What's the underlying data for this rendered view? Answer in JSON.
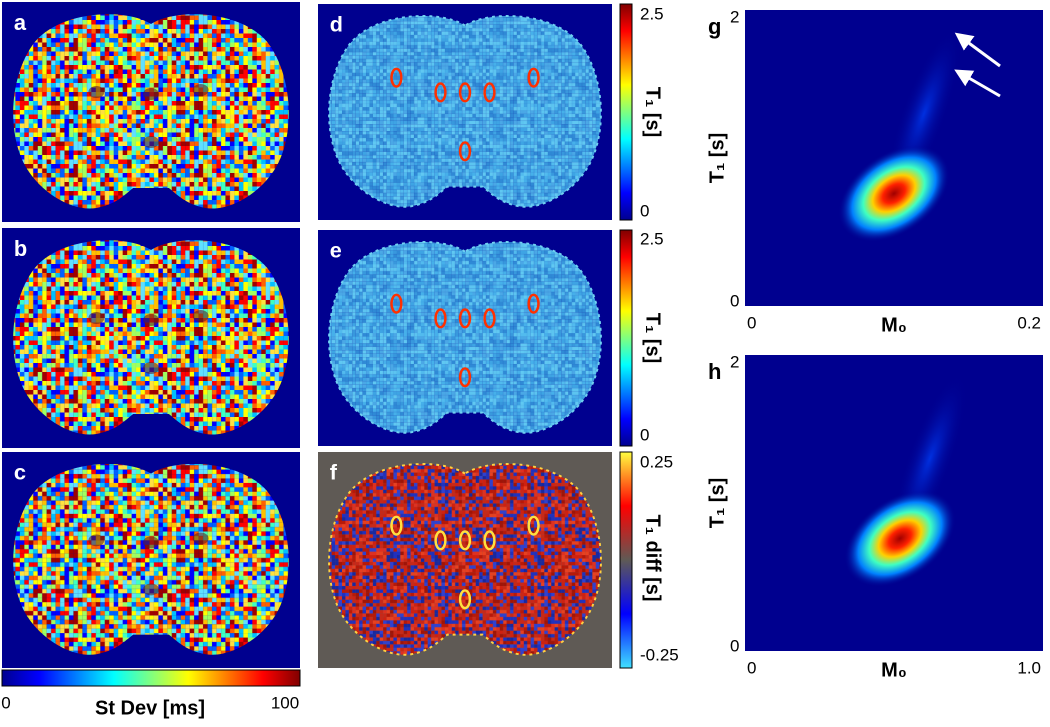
{
  "panels": {
    "a": "a",
    "b": "b",
    "c": "c",
    "d": "d",
    "e": "e",
    "f": "f"
  },
  "colorbars": {
    "stdev": {
      "min": "0",
      "max": "100",
      "title": "St Dev [ms]"
    },
    "t1_d": {
      "max": "2.5",
      "min": "0",
      "title": "T₁ [s]"
    },
    "t1_e": {
      "max": "2.5",
      "min": "0",
      "title": "T₁ [s]"
    },
    "diff": {
      "max": "0.25",
      "min": "-0.25",
      "title": "T₁ diff [s]"
    }
  },
  "plots": [
    {
      "label": "g",
      "y_label": "T₁ [s]",
      "x_label": "M₀",
      "y_top": "2",
      "y_bottom": "0",
      "x_left": "0",
      "x_right": "0.2"
    },
    {
      "label": "h",
      "y_label": "T₁ [s]",
      "x_label": "M₀",
      "y_top": "2",
      "y_bottom": "0",
      "x_left": "0",
      "x_right": "1.0"
    }
  ]
}
